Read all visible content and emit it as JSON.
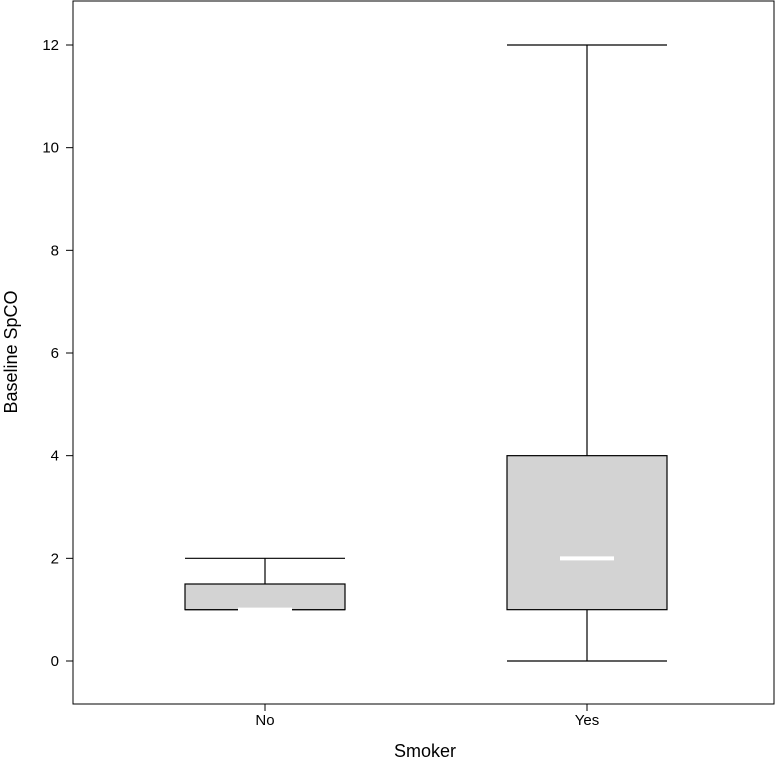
{
  "chart_data": {
    "type": "boxplot",
    "title": "",
    "xlabel": "Smoker",
    "ylabel": "Baseline SpCO",
    "categories": [
      "No",
      "Yes"
    ],
    "boxes": [
      {
        "category": "No",
        "min": 1,
        "q1": 1,
        "median": 1,
        "q3": 1.5,
        "max": 2
      },
      {
        "category": "Yes",
        "min": 0,
        "q1": 1,
        "median": 2,
        "q3": 4,
        "max": 12
      }
    ],
    "y_ticks": [
      0,
      2,
      4,
      6,
      8,
      10,
      12
    ],
    "ylim": [
      -0.83,
      12.87
    ],
    "grid": false,
    "legend": "none",
    "colors": {
      "box_fill": "#d3d3d3",
      "median": "#ffffff",
      "stroke": "#000000"
    }
  }
}
